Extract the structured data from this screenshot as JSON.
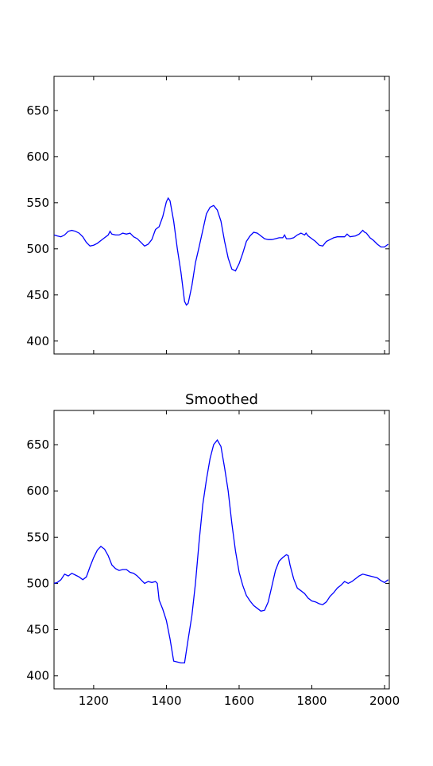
{
  "chart_data": [
    {
      "type": "line",
      "color": "#0000ff",
      "xlim": [
        1091,
        2013
      ],
      "ylim": [
        386,
        687
      ],
      "xticks": [
        1200,
        1400,
        1600,
        1800,
        2000
      ],
      "yticks": [
        400,
        450,
        500,
        550,
        600,
        650
      ],
      "xtick_labels": false,
      "x": [
        1091,
        1100,
        1110,
        1120,
        1130,
        1140,
        1150,
        1160,
        1170,
        1180,
        1190,
        1200,
        1210,
        1220,
        1230,
        1240,
        1245,
        1250,
        1260,
        1270,
        1280,
        1290,
        1300,
        1310,
        1320,
        1330,
        1340,
        1350,
        1360,
        1370,
        1380,
        1390,
        1400,
        1405,
        1410,
        1420,
        1430,
        1440,
        1450,
        1455,
        1460,
        1470,
        1480,
        1490,
        1500,
        1510,
        1520,
        1530,
        1540,
        1550,
        1560,
        1570,
        1580,
        1590,
        1600,
        1610,
        1620,
        1630,
        1640,
        1650,
        1660,
        1670,
        1680,
        1690,
        1700,
        1710,
        1720,
        1725,
        1730,
        1740,
        1750,
        1760,
        1770,
        1780,
        1784,
        1790,
        1800,
        1810,
        1820,
        1830,
        1840,
        1850,
        1860,
        1870,
        1880,
        1890,
        1897,
        1905,
        1920,
        1930,
        1940,
        1945,
        1950,
        1960,
        1970,
        1980,
        1990,
        2000,
        2010
      ],
      "values": [
        515,
        514,
        513,
        515,
        519,
        520,
        519,
        517,
        513,
        507,
        503,
        504,
        506,
        509,
        512,
        515,
        519,
        516,
        515,
        515,
        517,
        516,
        517,
        513,
        511,
        507,
        503,
        505,
        510,
        521,
        524,
        535,
        551,
        555,
        552,
        530,
        500,
        475,
        443,
        439,
        441,
        460,
        485,
        502,
        520,
        538,
        545,
        547,
        542,
        530,
        508,
        490,
        478,
        476,
        484,
        495,
        508,
        514,
        518,
        517,
        514,
        511,
        510,
        510,
        511,
        512,
        512,
        515,
        511,
        511,
        512,
        515,
        517,
        515,
        517,
        514,
        511,
        508,
        504,
        503,
        508,
        510,
        512,
        513,
        513,
        513,
        516,
        513,
        514,
        516,
        520,
        518,
        517,
        512,
        509,
        505,
        502,
        502,
        505
      ]
    },
    {
      "type": "line",
      "title": "Smoothed",
      "color": "#0000ff",
      "xlim": [
        1091,
        2013
      ],
      "ylim": [
        386,
        687
      ],
      "xticks": [
        1200,
        1400,
        1600,
        1800,
        2000
      ],
      "yticks": [
        400,
        450,
        500,
        550,
        600,
        650
      ],
      "xtick_labels": true,
      "x": [
        1091,
        1100,
        1110,
        1120,
        1130,
        1140,
        1150,
        1160,
        1170,
        1180,
        1190,
        1200,
        1210,
        1220,
        1230,
        1240,
        1250,
        1260,
        1270,
        1280,
        1290,
        1300,
        1310,
        1320,
        1330,
        1340,
        1350,
        1360,
        1370,
        1375,
        1380,
        1390,
        1400,
        1410,
        1420,
        1430,
        1440,
        1450,
        1460,
        1470,
        1480,
        1490,
        1500,
        1510,
        1520,
        1530,
        1540,
        1550,
        1560,
        1570,
        1580,
        1590,
        1600,
        1610,
        1620,
        1630,
        1640,
        1650,
        1660,
        1670,
        1680,
        1690,
        1700,
        1710,
        1720,
        1730,
        1735,
        1740,
        1750,
        1760,
        1770,
        1780,
        1790,
        1800,
        1810,
        1820,
        1830,
        1840,
        1850,
        1860,
        1870,
        1880,
        1890,
        1900,
        1910,
        1920,
        1930,
        1940,
        1950,
        1960,
        1970,
        1980,
        1990,
        2000,
        2010
      ],
      "values": [
        500,
        501,
        504,
        510,
        508,
        511,
        509,
        507,
        504,
        507,
        518,
        528,
        536,
        540,
        537,
        530,
        520,
        516,
        514,
        515,
        515,
        512,
        511,
        508,
        504,
        500,
        502,
        501,
        502,
        500,
        482,
        472,
        460,
        440,
        416,
        415,
        414,
        414,
        440,
        465,
        500,
        545,
        585,
        612,
        635,
        650,
        655,
        648,
        625,
        600,
        565,
        535,
        512,
        498,
        487,
        481,
        476,
        473,
        470,
        471,
        480,
        497,
        514,
        524,
        528,
        531,
        530,
        520,
        505,
        495,
        492,
        489,
        484,
        481,
        480,
        478,
        477,
        480,
        486,
        490,
        495,
        498,
        502,
        500,
        502,
        505,
        508,
        510,
        509,
        508,
        507,
        506,
        503,
        501,
        504
      ]
    }
  ]
}
